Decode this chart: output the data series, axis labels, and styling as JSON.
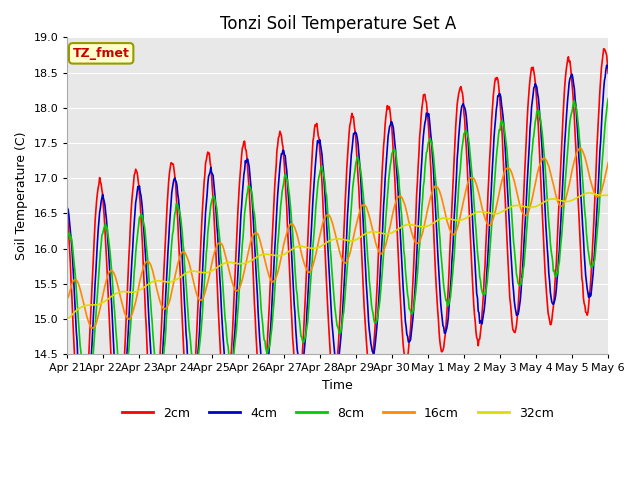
{
  "title": "Tonzi Soil Temperature Set A",
  "xlabel": "Time",
  "ylabel": "Soil Temperature (C)",
  "ylim": [
    14.5,
    19.0
  ],
  "x_tick_labels": [
    "Apr 21",
    "Apr 22",
    "Apr 23",
    "Apr 24",
    "Apr 25",
    "Apr 26",
    "Apr 27",
    "Apr 28",
    "Apr 29",
    "Apr 30",
    "May 1",
    "May 2",
    "May 3",
    "May 4",
    "May 5",
    "May 6"
  ],
  "legend_label": "TZ_fmet",
  "series_labels": [
    "2cm",
    "4cm",
    "8cm",
    "16cm",
    "32cm"
  ],
  "series_colors": [
    "#ff0000",
    "#0000cc",
    "#00cc00",
    "#ff8800",
    "#dddd00"
  ],
  "fig_bg": "#ffffff",
  "plot_bg": "#e8e8e8",
  "grid_color": "#ffffff",
  "title_fontsize": 12,
  "axis_fontsize": 9,
  "tick_fontsize": 8,
  "legend_fontsize": 9,
  "line_width": 1.2
}
